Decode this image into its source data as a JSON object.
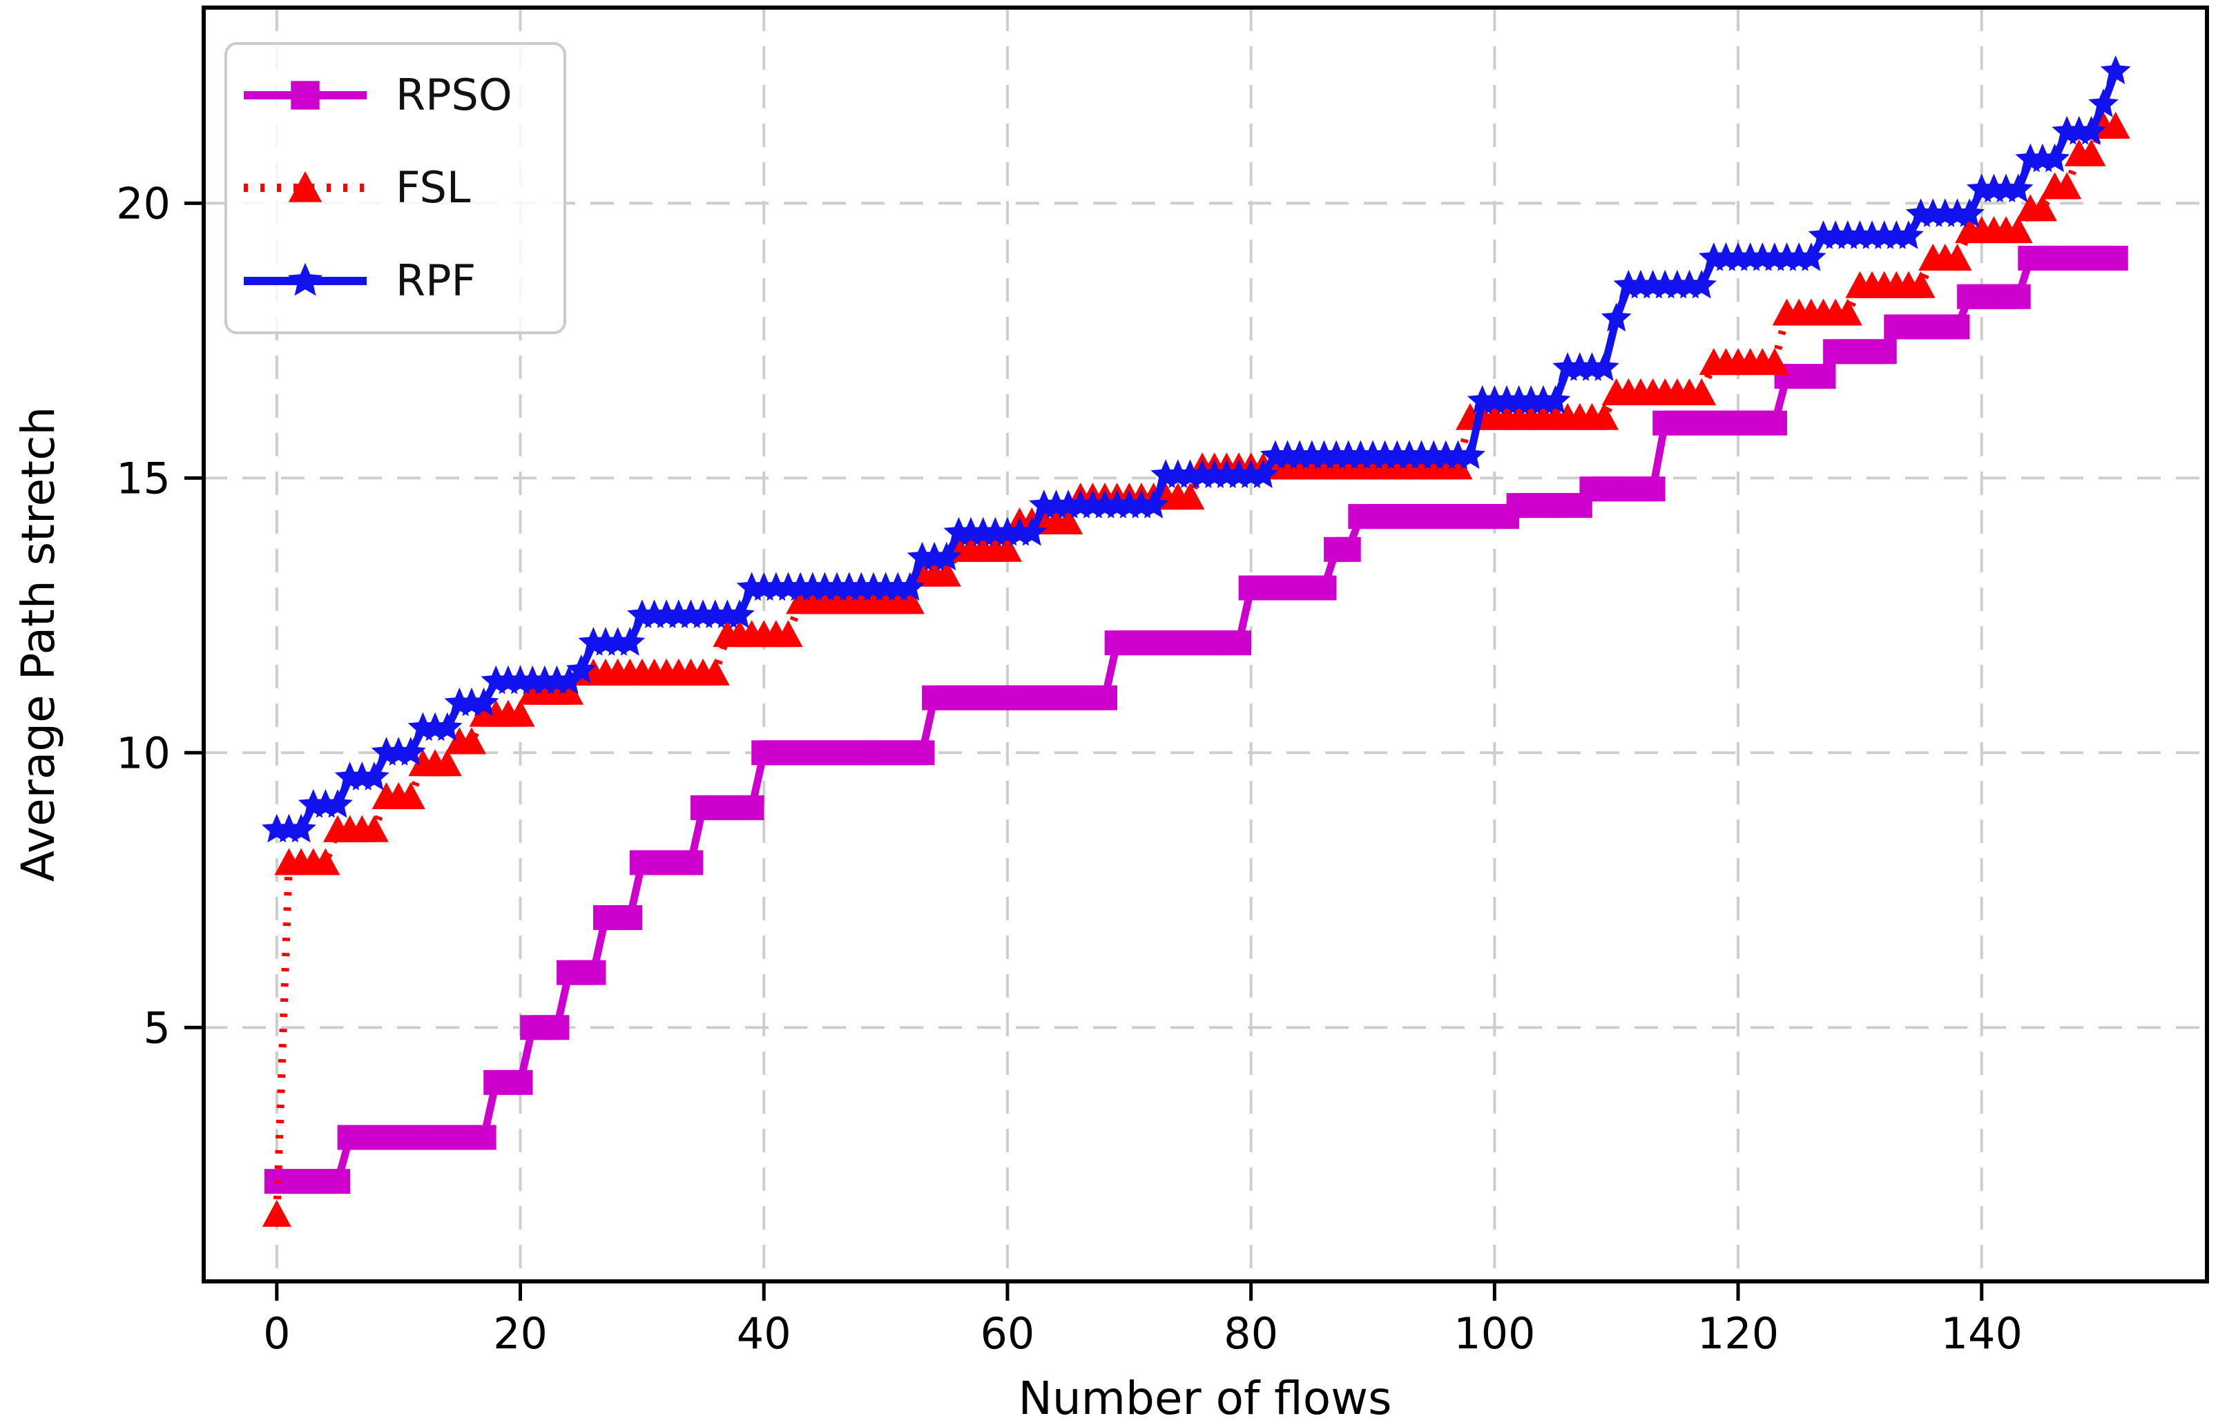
{
  "chart_data": {
    "type": "line",
    "title": "",
    "xlabel": "Number of flows",
    "ylabel": "Average Path stretch",
    "xlim": [
      -6,
      158.5
    ],
    "ylim": [
      0.38,
      23.56
    ],
    "xticks": [
      0,
      20,
      40,
      60,
      80,
      100,
      120,
      140
    ],
    "yticks": [
      5,
      10,
      15,
      20
    ],
    "grid": true,
    "grid_color": "#cdcdcd",
    "background": "#ffffff",
    "legend_position": "upper left",
    "x_is_integer_flows": true,
    "series": [
      {
        "name": "RPSO",
        "color": "#ce00ce",
        "marker": "square",
        "linestyle": "solid",
        "steps": [
          [
            0,
            5,
            2.2
          ],
          [
            6,
            17,
            3.0
          ],
          [
            18,
            20,
            4.0
          ],
          [
            21,
            23,
            5.0
          ],
          [
            24,
            26,
            6.0
          ],
          [
            27,
            29,
            7.0
          ],
          [
            30,
            34,
            8.0
          ],
          [
            35,
            39,
            9.0
          ],
          [
            40,
            53,
            10.0
          ],
          [
            54,
            68,
            11.0
          ],
          [
            69,
            79,
            12.0
          ],
          [
            80,
            86,
            13.0
          ],
          [
            87,
            88,
            13.7
          ],
          [
            89,
            101,
            14.3
          ],
          [
            102,
            107,
            14.5
          ],
          [
            108,
            113,
            14.8
          ],
          [
            114,
            123,
            16.0
          ],
          [
            124,
            127,
            16.85
          ],
          [
            128,
            132,
            17.3
          ],
          [
            133,
            138,
            17.75
          ],
          [
            139,
            143,
            18.3
          ],
          [
            144,
            151,
            19.0
          ]
        ]
      },
      {
        "name": "FSL",
        "color": "#ff0000",
        "marker": "triangle",
        "linestyle": "dotted",
        "steps": [
          [
            0,
            0,
            1.6
          ],
          [
            1,
            4,
            8.0
          ],
          [
            5,
            8,
            8.6
          ],
          [
            9,
            11,
            9.2
          ],
          [
            12,
            14,
            9.8
          ],
          [
            15,
            16,
            10.2
          ],
          [
            17,
            20,
            10.7
          ],
          [
            21,
            24,
            11.1
          ],
          [
            25,
            36,
            11.45
          ],
          [
            37,
            42,
            12.15
          ],
          [
            43,
            52,
            12.75
          ],
          [
            53,
            55,
            13.25
          ],
          [
            56,
            60,
            13.7
          ],
          [
            61,
            65,
            14.2
          ],
          [
            66,
            75,
            14.65
          ],
          [
            76,
            97,
            15.2
          ],
          [
            98,
            109,
            16.1
          ],
          [
            110,
            117,
            16.55
          ],
          [
            118,
            123,
            17.1
          ],
          [
            124,
            129,
            18.0
          ],
          [
            130,
            135,
            18.5
          ],
          [
            136,
            138,
            19.0
          ],
          [
            139,
            143,
            19.5
          ],
          [
            144,
            145,
            19.9
          ],
          [
            146,
            147,
            20.3
          ],
          [
            148,
            149,
            20.9
          ],
          [
            150,
            151,
            21.4
          ]
        ]
      },
      {
        "name": "RPF",
        "color": "#1212ee",
        "marker": "star",
        "linestyle": "solid",
        "steps": [
          [
            0,
            2,
            8.6
          ],
          [
            3,
            5,
            9.05
          ],
          [
            6,
            8,
            9.55
          ],
          [
            9,
            11,
            10.0
          ],
          [
            12,
            14,
            10.45
          ],
          [
            15,
            17,
            10.9
          ],
          [
            18,
            24,
            11.3
          ],
          [
            25,
            25,
            11.5
          ],
          [
            26,
            29,
            12.0
          ],
          [
            30,
            38,
            12.5
          ],
          [
            39,
            52,
            13.0
          ],
          [
            53,
            55,
            13.55
          ],
          [
            56,
            62,
            14.0
          ],
          [
            63,
            72,
            14.5
          ],
          [
            73,
            81,
            15.05
          ],
          [
            82,
            98,
            15.4
          ],
          [
            99,
            105,
            16.4
          ],
          [
            106,
            109,
            17.0
          ],
          [
            110,
            110,
            17.9
          ],
          [
            111,
            117,
            18.5
          ],
          [
            118,
            126,
            19.0
          ],
          [
            127,
            134,
            19.4
          ],
          [
            135,
            139,
            19.8
          ],
          [
            140,
            143,
            20.25
          ],
          [
            144,
            146,
            20.8
          ],
          [
            147,
            149,
            21.3
          ],
          [
            150,
            150,
            21.8
          ],
          [
            151,
            151,
            22.4
          ]
        ]
      }
    ]
  }
}
